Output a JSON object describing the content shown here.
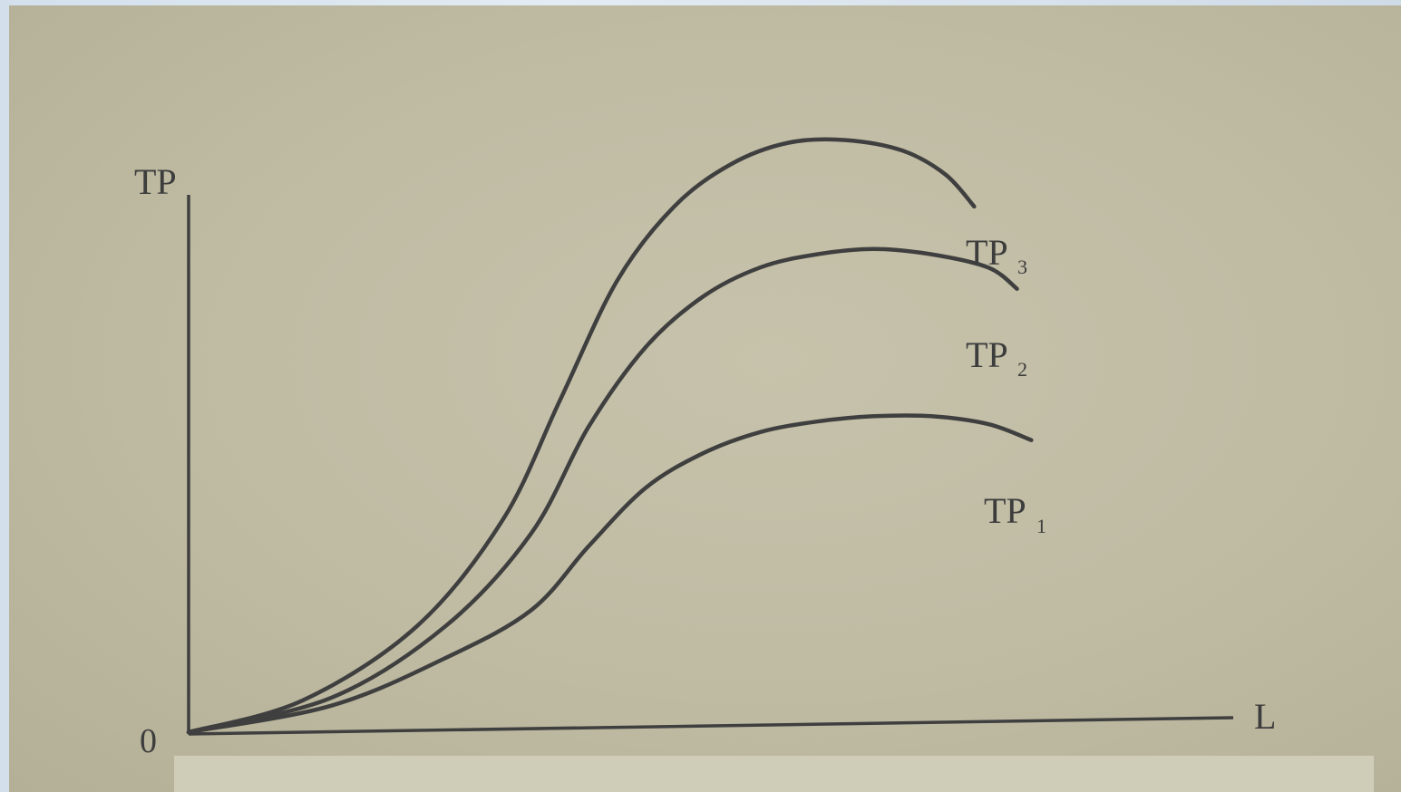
{
  "chart_data": {
    "type": "line",
    "xlabel": "L",
    "ylabel": "TP",
    "origin_label": "0",
    "grid": false,
    "series": [
      {
        "name": "TP₃",
        "label_main": "TP",
        "label_sub": "3",
        "points": [
          [
            0,
            0
          ],
          [
            4,
            1.2
          ],
          [
            8,
            4
          ],
          [
            11,
            8
          ],
          [
            13,
            12.5
          ],
          [
            15,
            17
          ],
          [
            17,
            19.8
          ],
          [
            19,
            21.4
          ],
          [
            21,
            22.2
          ],
          [
            23,
            22.3
          ],
          [
            25,
            21.9
          ],
          [
            26.5,
            21.0
          ],
          [
            27.5,
            19.8
          ]
        ]
      },
      {
        "name": "TP₂",
        "label_main": "TP",
        "label_sub": "2",
        "points": [
          [
            0,
            0
          ],
          [
            5,
            1.3
          ],
          [
            9,
            4
          ],
          [
            12,
            7.5
          ],
          [
            14,
            11.5
          ],
          [
            16,
            14.5
          ],
          [
            18,
            16.4
          ],
          [
            20,
            17.5
          ],
          [
            22,
            18.0
          ],
          [
            24,
            18.2
          ],
          [
            26,
            18.0
          ],
          [
            28,
            17.5
          ],
          [
            29,
            16.7
          ]
        ]
      },
      {
        "name": "TP₁",
        "label_main": "TP",
        "label_sub": "1",
        "points": [
          [
            0,
            0
          ],
          [
            5,
            1
          ],
          [
            9,
            2.8
          ],
          [
            12,
            4.6
          ],
          [
            14,
            7.0
          ],
          [
            16,
            9.2
          ],
          [
            18,
            10.5
          ],
          [
            20,
            11.3
          ],
          [
            22,
            11.7
          ],
          [
            24,
            11.9
          ],
          [
            26,
            11.9
          ],
          [
            28,
            11.6
          ],
          [
            29.5,
            11.0
          ]
        ]
      }
    ]
  }
}
